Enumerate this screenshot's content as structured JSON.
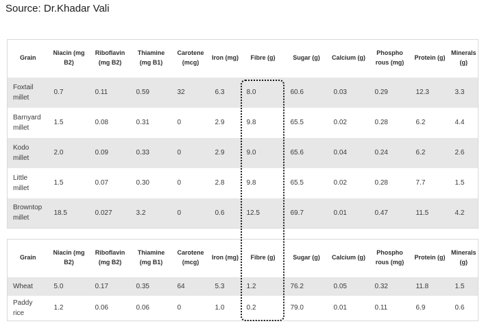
{
  "source": "Source: Dr.Khadar Vali",
  "columns": [
    "Grain",
    "Niacin (mg B2)",
    "Riboflavin (mg B2)",
    "Thiamine (mg B1)",
    "Carotene (mcg)",
    "Iron (mg)",
    "Fibre (g)",
    "Sugar (g)",
    "Calcium (g)",
    "Phospho rous (mg)",
    "Protein (g)",
    "Minerals (g)"
  ],
  "highlight": {
    "column": "Fibre (g)",
    "style": "dotted-outline"
  },
  "tables": [
    {
      "name": "millets",
      "rows": [
        [
          "Foxtail millet",
          "0.7",
          "0.11",
          "0.59",
          "32",
          "6.3",
          "8.0",
          "60.6",
          "0.03",
          "0.29",
          "12.3",
          "3.3"
        ],
        [
          "Barnyard millet",
          "1.5",
          "0.08",
          "0.31",
          "0",
          "2.9",
          "9.8",
          "65.5",
          "0.02",
          "0.28",
          "6.2",
          "4.4"
        ],
        [
          "Kodo millet",
          "2.0",
          "0.09",
          "0.33",
          "0",
          "2.9",
          "9.0",
          "65.6",
          "0.04",
          "0.24",
          "6.2",
          "2.6"
        ],
        [
          "Little millet",
          "1.5",
          "0.07",
          "0.30",
          "0",
          "2.8",
          "9.8",
          "65.5",
          "0.02",
          "0.28",
          "7.7",
          "1.5"
        ],
        [
          "Browntop millet",
          "18.5",
          "0.027",
          "3.2",
          "0",
          "0.6",
          "12.5",
          "69.7",
          "0.01",
          "0.47",
          "11.5",
          "4.2"
        ]
      ]
    },
    {
      "name": "other-grains",
      "rows": [
        [
          "Wheat",
          "5.0",
          "0.17",
          "0.35",
          "64",
          "5.3",
          "1.2",
          "76.2",
          "0.05",
          "0.32",
          "11.8",
          "1.5"
        ],
        [
          "Paddy rice",
          "1.2",
          "0.06",
          "0.06",
          "0",
          "1.0",
          "0.2",
          "79.0",
          "0.01",
          "0.11",
          "6.9",
          "0.6"
        ]
      ]
    }
  ]
}
